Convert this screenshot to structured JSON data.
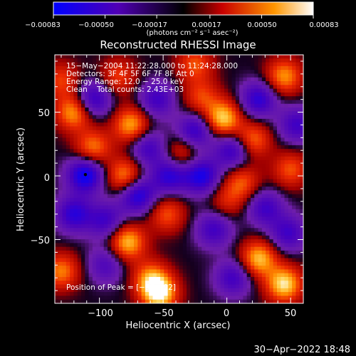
{
  "chart_data": {
    "type": "heatmap",
    "title": "Reconstructed RHESSI Image",
    "xlabel": "Heliocentric X (arcsec)",
    "ylabel": "Heliocentric Y (arcsec)",
    "xlim": [
      -135,
      60
    ],
    "ylim": [
      -100,
      95
    ],
    "x_ticks": [
      -100,
      -50,
      0,
      50
    ],
    "x_tick_labels": [
      "−100",
      "−50",
      "0",
      "50"
    ],
    "y_ticks": [
      -50,
      0,
      50
    ],
    "y_tick_labels": [
      "−50",
      "0",
      "50"
    ],
    "colorbar": {
      "min": -0.00083,
      "max": 0.00083,
      "tick_values": [
        -0.00083,
        -0.0005,
        -0.00017,
        0.00017,
        0.0005,
        0.00083
      ],
      "tick_labels": [
        "−0.00083",
        "−0.00050",
        "−0.00017",
        "0.00017",
        "0.00050",
        "0.00083"
      ],
      "units_label": "(photons cm⁻² s⁻¹ asec⁻²)"
    },
    "annotations": [
      "15−May−2004 11:22:28.000 to 11:24:28.000",
      "Detectors: 3F 4F 5F 6F 7F 8F Att 0",
      "Energy Range: 12.0 − 25.0 keV",
      "Clean    Total counts: 2.43E+03",
      "Position of Peak = [−53,−92]"
    ],
    "peak": {
      "x": -53,
      "y": -92
    },
    "marker": {
      "x": -111,
      "y": 1
    },
    "sources": [
      {
        "x": -120,
        "y": 50,
        "v": 0.00065
      },
      {
        "x": -105,
        "y": 22,
        "v": 0.00055
      },
      {
        "x": -85,
        "y": 78,
        "v": 0.0004
      },
      {
        "x": -80,
        "y": 0,
        "v": 0.0006
      },
      {
        "x": -78,
        "y": -52,
        "v": 0.0007
      },
      {
        "x": -60,
        "y": -80,
        "v": 0.0005
      },
      {
        "x": -53,
        "y": -92,
        "v": 0.00083
      },
      {
        "x": -47,
        "y": -30,
        "v": 0.00045
      },
      {
        "x": -35,
        "y": 18,
        "v": 0.0004
      },
      {
        "x": -20,
        "y": 62,
        "v": 0.0004
      },
      {
        "x": -3,
        "y": 45,
        "v": 0.00075
      },
      {
        "x": 12,
        "y": -5,
        "v": 0.00045
      },
      {
        "x": 20,
        "y": 28,
        "v": 0.00055
      },
      {
        "x": 25,
        "y": -65,
        "v": 0.0007
      },
      {
        "x": 45,
        "y": -85,
        "v": 0.00078
      },
      {
        "x": 45,
        "y": 78,
        "v": 0.0006
      },
      {
        "x": 50,
        "y": 5,
        "v": 0.00045
      },
      {
        "x": -130,
        "y": -75,
        "v": 0.00055
      },
      {
        "x": -130,
        "y": 75,
        "v": 0.0004
      },
      {
        "x": 0,
        "y": -20,
        "v": 0.0003
      },
      {
        "x": -75,
        "y": 40,
        "v": 0.00065
      },
      {
        "x": -25,
        "y": 88,
        "v": 0.00045
      },
      {
        "x": -62,
        "y": 22,
        "v": -0.0005
      },
      {
        "x": -111,
        "y": 1,
        "v": -0.0008
      },
      {
        "x": -120,
        "y": -30,
        "v": -0.0006
      },
      {
        "x": -95,
        "y": -35,
        "v": -0.0005
      },
      {
        "x": -70,
        "y": -15,
        "v": -0.0007
      },
      {
        "x": -45,
        "y": 0,
        "v": -0.0006
      },
      {
        "x": -20,
        "y": 0,
        "v": -0.0007
      },
      {
        "x": 5,
        "y": 20,
        "v": -0.0006
      },
      {
        "x": 30,
        "y": -25,
        "v": -0.0005
      },
      {
        "x": -10,
        "y": -42,
        "v": -0.0005
      },
      {
        "x": -25,
        "y": 35,
        "v": -0.0006
      },
      {
        "x": 25,
        "y": 60,
        "v": -0.0006
      },
      {
        "x": 48,
        "y": -45,
        "v": -0.0005
      },
      {
        "x": -105,
        "y": 60,
        "v": -0.0006
      },
      {
        "x": -55,
        "y": 60,
        "v": -0.0005
      },
      {
        "x": -95,
        "y": -70,
        "v": -0.0004
      },
      {
        "x": 5,
        "y": -80,
        "v": -0.0005
      },
      {
        "x": 55,
        "y": 40,
        "v": -0.0005
      }
    ],
    "sigma": 10,
    "grid": false
  },
  "footer": {
    "timestamp": "30−Apr−2022 18:48"
  }
}
